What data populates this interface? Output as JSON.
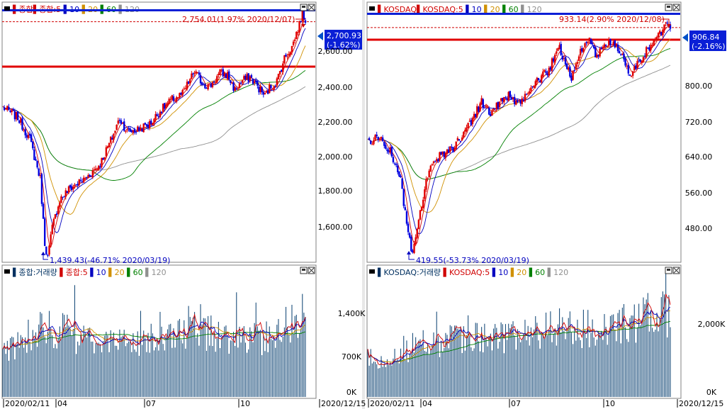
{
  "panels": [
    {
      "price_legend": [
        {
          "label": "종합",
          "color": "#d00000"
        },
        {
          "label": "종합:5",
          "color": "#d00000"
        },
        {
          "label": "10",
          "color": "#0000c0"
        },
        {
          "label": "20",
          "color": "#d09000"
        },
        {
          "label": "60",
          "color": "#008000"
        },
        {
          "label": "120",
          "color": "#909090"
        }
      ],
      "volume_legend": [
        {
          "label": "종합:거래량",
          "color": "#003060"
        },
        {
          "label": "종합:5",
          "color": "#d00000"
        },
        {
          "label": "10",
          "color": "#0000c0"
        },
        {
          "label": "20",
          "color": "#d09000"
        },
        {
          "label": "60",
          "color": "#008000"
        },
        {
          "label": "120",
          "color": "#909090"
        }
      ],
      "high_annotation": "2,754.01(1.97% 2020/12/07)",
      "low_annotation": "1,439.43(-46.71% 2020/03/19)",
      "current_price": "2,700.93",
      "current_change": "(-1.62%)",
      "price_ticks": [
        "2,600.00",
        "2,400.00",
        "2,200.00",
        "2,000.00",
        "1,800.00",
        "1,600.00"
      ],
      "volume_ticks": [
        "1,400K",
        "700K",
        "0K"
      ],
      "date_labels": [
        "2020/02/11",
        "04",
        "07",
        "10",
        "2020/12/15"
      ],
      "chart_data": {
        "type": "candlestick",
        "x_range": [
          "2020/02/11",
          "2020/12/15"
        ],
        "ylim": [
          1420,
          2790
        ],
        "horizontal_lines": [
          2754.01,
          2700.93,
          2455
        ],
        "keypoints": [
          [
            0,
            2240
          ],
          [
            10,
            2185
          ],
          [
            18,
            2070
          ],
          [
            25,
            1860
          ],
          [
            28,
            1520
          ],
          [
            30,
            1440
          ],
          [
            33,
            1600
          ],
          [
            38,
            1750
          ],
          [
            45,
            1810
          ],
          [
            55,
            1860
          ],
          [
            65,
            1940
          ],
          [
            73,
            2080
          ],
          [
            78,
            2180
          ],
          [
            83,
            2110
          ],
          [
            90,
            2120
          ],
          [
            98,
            2150
          ],
          [
            105,
            2220
          ],
          [
            113,
            2280
          ],
          [
            120,
            2310
          ],
          [
            128,
            2430
          ],
          [
            133,
            2370
          ],
          [
            138,
            2350
          ],
          [
            145,
            2420
          ],
          [
            150,
            2410
          ],
          [
            155,
            2330
          ],
          [
            160,
            2380
          ],
          [
            165,
            2400
          ],
          [
            170,
            2350
          ],
          [
            175,
            2300
          ],
          [
            178,
            2340
          ],
          [
            183,
            2380
          ],
          [
            188,
            2500
          ],
          [
            193,
            2560
          ],
          [
            198,
            2680
          ],
          [
            200,
            2750
          ],
          [
            202,
            2700
          ]
        ],
        "volume_keypoints": [
          [
            0,
            690
          ],
          [
            20,
            1050
          ],
          [
            30,
            1100
          ],
          [
            45,
            980
          ],
          [
            60,
            880
          ],
          [
            75,
            850
          ],
          [
            90,
            870
          ],
          [
            105,
            900
          ],
          [
            120,
            960
          ],
          [
            130,
            1080
          ],
          [
            140,
            1000
          ],
          [
            150,
            930
          ],
          [
            160,
            880
          ],
          [
            170,
            900
          ],
          [
            180,
            1000
          ],
          [
            190,
            1150
          ],
          [
            197,
            1300
          ],
          [
            202,
            1250
          ]
        ],
        "volume_ylim": [
          0,
          2050
        ]
      }
    },
    {
      "price_legend": [
        {
          "label": "KOSDAQ",
          "color": "#d00000"
        },
        {
          "label": "KOSDAQ:5",
          "color": "#d00000"
        },
        {
          "label": "10",
          "color": "#0000c0"
        },
        {
          "label": "20",
          "color": "#d09000"
        },
        {
          "label": "60",
          "color": "#008000"
        },
        {
          "label": "120",
          "color": "#909090"
        }
      ],
      "volume_legend": [
        {
          "label": "KOSDAQ:거래량",
          "color": "#003060"
        },
        {
          "label": "KOSDAQ:5",
          "color": "#d00000"
        },
        {
          "label": "10",
          "color": "#0000c0"
        },
        {
          "label": "20",
          "color": "#d09000"
        },
        {
          "label": "60",
          "color": "#008000"
        },
        {
          "label": "120",
          "color": "#909090"
        }
      ],
      "high_annotation": "933.14(2.90% 2020/12/08)",
      "low_annotation": "419.55(-53.73% 2020/03/19)",
      "current_price": "906.84",
      "current_change": "(-2.16%)",
      "price_ticks": [
        "800.00",
        "720.00",
        "640.00",
        "560.00",
        "480.00"
      ],
      "volume_ticks": [
        "2,000K",
        "0K"
      ],
      "date_labels": [
        "2020/02/11",
        "04",
        "07",
        "10",
        "2020/12/15"
      ],
      "chart_data": {
        "type": "candlestick",
        "x_range": [
          "2020/02/11",
          "2020/12/15"
        ],
        "ylim": [
          405,
          955
        ],
        "horizontal_lines": [
          933.14,
          906.84,
          878
        ],
        "keypoints": [
          [
            0,
            660
          ],
          [
            8,
            670
          ],
          [
            15,
            640
          ],
          [
            22,
            580
          ],
          [
            27,
            460
          ],
          [
            30,
            420
          ],
          [
            34,
            490
          ],
          [
            40,
            590
          ],
          [
            48,
            630
          ],
          [
            58,
            650
          ],
          [
            68,
            700
          ],
          [
            76,
            745
          ],
          [
            82,
            720
          ],
          [
            88,
            745
          ],
          [
            95,
            760
          ],
          [
            100,
            735
          ],
          [
            110,
            780
          ],
          [
            120,
            810
          ],
          [
            128,
            860
          ],
          [
            133,
            820
          ],
          [
            136,
            800
          ],
          [
            142,
            850
          ],
          [
            148,
            880
          ],
          [
            153,
            840
          ],
          [
            158,
            870
          ],
          [
            165,
            870
          ],
          [
            170,
            840
          ],
          [
            175,
            800
          ],
          [
            178,
            815
          ],
          [
            185,
            850
          ],
          [
            190,
            870
          ],
          [
            195,
            890
          ],
          [
            200,
            920
          ],
          [
            202,
            910
          ]
        ],
        "volume_keypoints": [
          [
            0,
            1050
          ],
          [
            20,
            1250
          ],
          [
            30,
            1400
          ],
          [
            45,
            1500
          ],
          [
            60,
            1550
          ],
          [
            75,
            1650
          ],
          [
            90,
            1600
          ],
          [
            105,
            1750
          ],
          [
            120,
            1900
          ],
          [
            130,
            2050
          ],
          [
            140,
            1950
          ],
          [
            150,
            1850
          ],
          [
            160,
            1950
          ],
          [
            170,
            2000
          ],
          [
            180,
            2150
          ],
          [
            190,
            2250
          ],
          [
            197,
            2300
          ],
          [
            202,
            2200
          ]
        ],
        "volume_ylim": [
          0,
          3600
        ]
      }
    }
  ]
}
